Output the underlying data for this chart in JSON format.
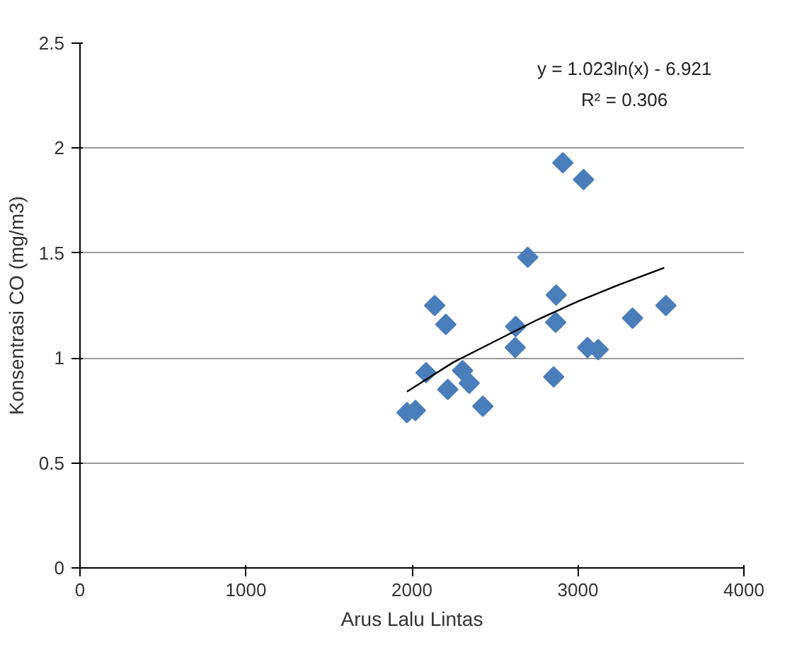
{
  "chart_data": {
    "type": "scatter",
    "xlabel": "Arus Lalu Lintas",
    "ylabel": "Konsentrasi CO (mg/m3)",
    "xlim": [
      0,
      4000
    ],
    "xticks": [
      0,
      1000,
      2000,
      3000,
      4000
    ],
    "ylim": [
      0,
      2.5
    ],
    "yticks": [
      0,
      0.5,
      1,
      1.5,
      2,
      2.5
    ],
    "grid": "y",
    "marker": "diamond",
    "series": [
      {
        "color": "#4a7ebb",
        "x": [
          2909,
          3034,
          2698,
          2137,
          2204,
          2869,
          2866,
          2625,
          2622,
          3329,
          3530,
          3058,
          3122,
          2085,
          2305,
          2345,
          2216,
          2854,
          2427,
          1970,
          2021
        ],
        "values": [
          1.93,
          1.85,
          1.48,
          1.25,
          1.16,
          1.3,
          1.17,
          1.15,
          1.05,
          1.19,
          1.25,
          1.05,
          1.04,
          0.93,
          0.94,
          0.88,
          0.85,
          0.91,
          0.77,
          0.74,
          0.75
        ]
      },
      {
        "type": "line",
        "color": "#000000",
        "marker": "none",
        "line_style": "solid",
        "x": [
          1970,
          2250,
          2500,
          2750,
          3000,
          3250,
          3520
        ],
        "values": [
          0.84,
          0.98,
          1.08,
          1.18,
          1.27,
          1.35,
          1.43
        ]
      }
    ],
    "annotations": [
      "y = 1.023ln(x) - 6.921",
      "R² = 0.306"
    ]
  }
}
